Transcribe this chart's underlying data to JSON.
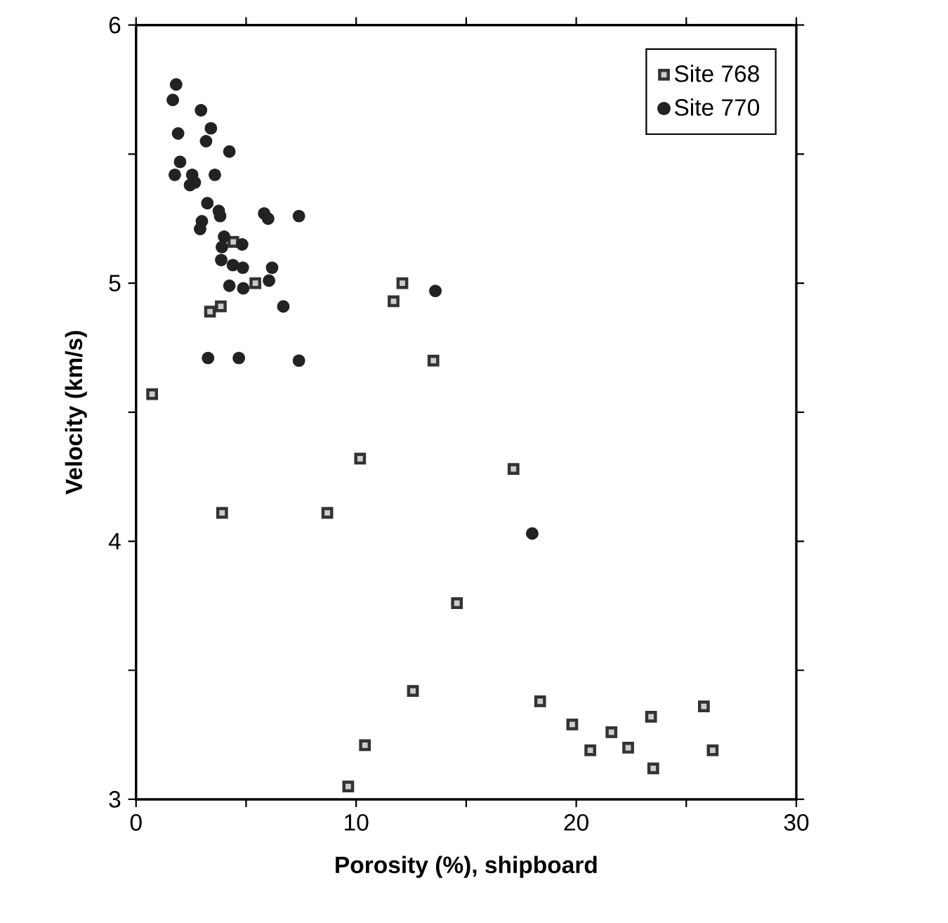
{
  "chart_data": {
    "type": "scatter",
    "xlabel": "Porosity    (%),  shipboard",
    "ylabel": "Velocity    (km/s)",
    "xlim": [
      0,
      30
    ],
    "ylim": [
      3,
      6
    ],
    "xticks": [
      0,
      {
        "value": 5,
        "label": null
      },
      10,
      {
        "value": 15,
        "label": null
      },
      20,
      {
        "value": 25,
        "label": null
      },
      30
    ],
    "yticks": [
      3,
      {
        "value": 3.5,
        "label": null
      },
      4,
      {
        "value": 4.5,
        "label": null
      },
      5,
      {
        "value": 5.5,
        "label": null
      },
      6
    ],
    "legend": "top right",
    "grid": false,
    "series": [
      {
        "name": "Site 768",
        "color": "#333333",
        "marker": "square",
        "x": [
          0.73,
          3.91,
          8.69,
          10.18,
          13.51,
          17.15,
          14.58,
          12.58,
          10.4,
          9.64,
          18.36,
          19.82,
          20.64,
          21.6,
          22.36,
          23.4,
          23.5,
          25.8,
          26.2,
          4.42,
          5.42,
          3.36,
          3.85,
          11.7,
          12.1
        ],
        "values": [
          4.57,
          4.11,
          4.11,
          4.32,
          4.7,
          4.28,
          3.76,
          3.42,
          3.21,
          3.05,
          3.38,
          3.29,
          3.19,
          3.26,
          3.2,
          3.32,
          3.12,
          3.36,
          3.19,
          5.16,
          5.0,
          4.89,
          4.91,
          4.93,
          5.0
        ]
      },
      {
        "name": "Site 770",
        "color": "#222222",
        "marker": "circle",
        "x": [
          3.27,
          4.67,
          7.4,
          18.0,
          13.6,
          1.82,
          1.67,
          2.95,
          3.4,
          1.91,
          3.18,
          4.24,
          2.0,
          1.76,
          2.55,
          2.67,
          2.45,
          3.58,
          3.24,
          3.76,
          3.82,
          2.99,
          2.91,
          5.82,
          6.0,
          7.4,
          4.0,
          3.9,
          4.82,
          3.87,
          4.4,
          4.85,
          6.18,
          6.04,
          4.24,
          4.87,
          6.69
        ],
        "values": [
          4.71,
          4.71,
          4.7,
          4.03,
          4.97,
          5.77,
          5.71,
          5.67,
          5.6,
          5.58,
          5.55,
          5.51,
          5.47,
          5.42,
          5.42,
          5.39,
          5.38,
          5.42,
          5.31,
          5.28,
          5.26,
          5.24,
          5.21,
          5.27,
          5.25,
          5.26,
          5.18,
          5.14,
          5.15,
          5.09,
          5.07,
          5.06,
          5.06,
          5.01,
          4.99,
          4.98,
          4.91
        ]
      }
    ]
  }
}
